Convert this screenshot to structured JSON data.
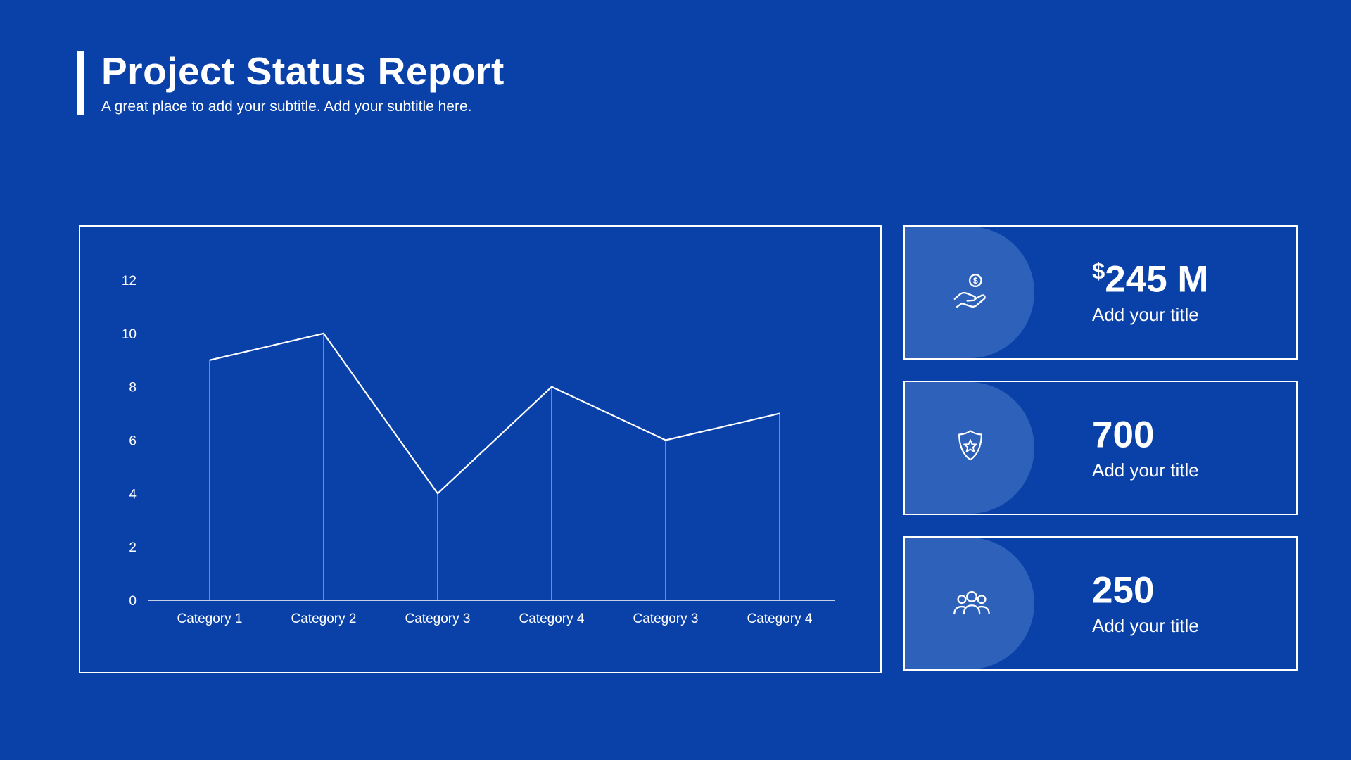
{
  "header": {
    "title": "Project Status Report",
    "subtitle": "A great place to add your subtitle. Add your subtitle here."
  },
  "chart_data": {
    "type": "line",
    "categories": [
      "Category 1",
      "Category 2",
      "Category 3",
      "Category 4",
      "Category 3",
      "Category 4"
    ],
    "values": [
      9,
      10,
      4,
      8,
      6,
      7
    ],
    "title": "",
    "xlabel": "",
    "ylabel": "",
    "ylim": [
      0,
      12
    ],
    "yticks": [
      0,
      2,
      4,
      6,
      8,
      10,
      12
    ],
    "grid": false,
    "legend": false,
    "marker_drop_lines": true
  },
  "stats": [
    {
      "icon": "money-hand-icon",
      "prefix": "$",
      "value": "245 M",
      "label": "Add your title"
    },
    {
      "icon": "badge-star-icon",
      "prefix": "",
      "value": "700",
      "label": "Add your title"
    },
    {
      "icon": "people-group-icon",
      "prefix": "",
      "value": "250",
      "label": "Add your title"
    }
  ],
  "colors": {
    "background": "#0a41a8",
    "bubble": "#2e61ba",
    "line": "#ffffff",
    "text": "#ffffff",
    "panel_border": "#ffffff"
  }
}
